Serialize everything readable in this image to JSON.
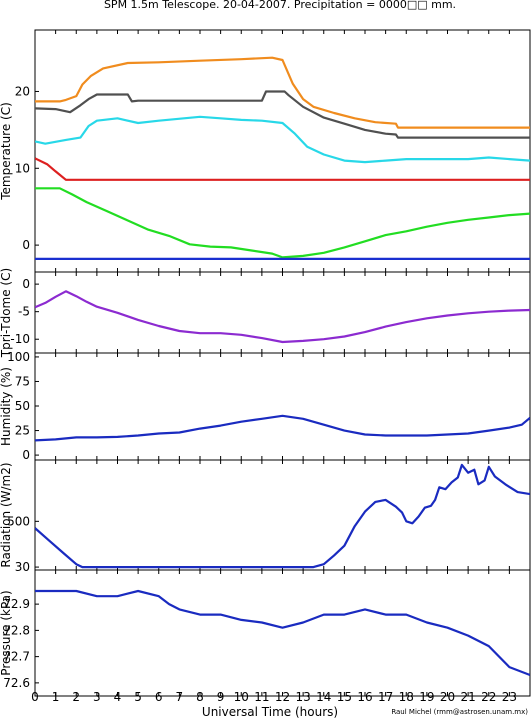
{
  "chart_data": {
    "type": "line",
    "title": "SPM 1.5m Telescope. 20-04-2007. Precipitation = 0000□□ mm.",
    "xlabel": "Universal Time (hours)",
    "credit": "Raul Michel (rmm@astrosen.unam.mx)",
    "xlim": [
      0,
      24
    ],
    "x_ticks": [
      "0",
      "1",
      "2",
      "3",
      "4",
      "5",
      "6",
      "7",
      "8",
      "9",
      "10",
      "11",
      "12",
      "13",
      "14",
      "15",
      "16",
      "17",
      "18",
      "19",
      "20",
      "21",
      "22",
      "23"
    ],
    "panels": [
      {
        "id": "temperature",
        "ylabel": "Temperature (C)",
        "ylim": [
          -3.5,
          28
        ],
        "y_ticks": [
          {
            "v": 0,
            "label": "0"
          },
          {
            "v": 10,
            "label": "10"
          },
          {
            "v": 20,
            "label": "20"
          }
        ],
        "series": [
          {
            "color": "#f08c1e",
            "points": [
              [
                0,
                18.7
              ],
              [
                1.2,
                18.7
              ],
              [
                1.5,
                18.9
              ],
              [
                2,
                19.4
              ],
              [
                2.3,
                20.9
              ],
              [
                2.7,
                22
              ],
              [
                3.3,
                23
              ],
              [
                4.5,
                23.7
              ],
              [
                6,
                23.8
              ],
              [
                8,
                24
              ],
              [
                10,
                24.2
              ],
              [
                11.5,
                24.4
              ],
              [
                12,
                24.1
              ],
              [
                12.5,
                21
              ],
              [
                13,
                19
              ],
              [
                13.5,
                18
              ],
              [
                14.5,
                17.2
              ],
              [
                15.5,
                16.5
              ],
              [
                16.5,
                16
              ],
              [
                17.5,
                15.8
              ],
              [
                17.6,
                15.3
              ],
              [
                24,
                15.3
              ]
            ]
          },
          {
            "color": "#505050",
            "points": [
              [
                0,
                17.8
              ],
              [
                1,
                17.7
              ],
              [
                1.7,
                17.3
              ],
              [
                2.2,
                18.2
              ],
              [
                2.6,
                19
              ],
              [
                3,
                19.6
              ],
              [
                4.5,
                19.6
              ],
              [
                4.7,
                18.7
              ],
              [
                5,
                18.8
              ],
              [
                11,
                18.8
              ],
              [
                11.2,
                20
              ],
              [
                12.1,
                20
              ],
              [
                12.3,
                19.5
              ],
              [
                13,
                18
              ],
              [
                14,
                16.6
              ],
              [
                15,
                15.8
              ],
              [
                16,
                15
              ],
              [
                17,
                14.5
              ],
              [
                17.5,
                14.4
              ],
              [
                17.6,
                14
              ],
              [
                24,
                14
              ]
            ]
          },
          {
            "color": "#28d8e8",
            "points": [
              [
                0,
                13.5
              ],
              [
                0.5,
                13.2
              ],
              [
                1.5,
                13.7
              ],
              [
                2.2,
                14
              ],
              [
                2.6,
                15.5
              ],
              [
                3,
                16.2
              ],
              [
                4,
                16.5
              ],
              [
                5,
                15.9
              ],
              [
                6,
                16.2
              ],
              [
                8,
                16.7
              ],
              [
                9,
                16.5
              ],
              [
                10,
                16.3
              ],
              [
                11,
                16.2
              ],
              [
                12,
                15.9
              ],
              [
                12.6,
                14.5
              ],
              [
                13.2,
                12.8
              ],
              [
                14,
                11.8
              ],
              [
                15,
                11
              ],
              [
                16,
                10.8
              ],
              [
                17,
                11
              ],
              [
                18,
                11.2
              ],
              [
                19,
                11.2
              ],
              [
                20,
                11.2
              ],
              [
                21,
                11.2
              ],
              [
                22,
                11.4
              ],
              [
                23,
                11.2
              ],
              [
                24,
                11
              ]
            ]
          },
          {
            "color": "#dd2020",
            "points": [
              [
                0,
                11.3
              ],
              [
                0.6,
                10.5
              ],
              [
                1,
                9.6
              ],
              [
                1.5,
                8.5
              ],
              [
                24,
                8.5
              ]
            ]
          },
          {
            "color": "#22dd22",
            "points": [
              [
                0,
                7.4
              ],
              [
                1.2,
                7.4
              ],
              [
                1.8,
                6.6
              ],
              [
                2.5,
                5.6
              ],
              [
                3.5,
                4.4
              ],
              [
                4.5,
                3.2
              ],
              [
                5.5,
                2
              ],
              [
                6.5,
                1.2
              ],
              [
                7.5,
                0.1
              ],
              [
                8.5,
                -0.2
              ],
              [
                9.5,
                -0.3
              ],
              [
                10.5,
                -0.7
              ],
              [
                11.5,
                -1.1
              ],
              [
                12,
                -1.6
              ],
              [
                13,
                -1.4
              ],
              [
                14,
                -1
              ],
              [
                15,
                -0.3
              ],
              [
                16,
                0.5
              ],
              [
                17,
                1.3
              ],
              [
                18,
                1.8
              ],
              [
                19,
                2.4
              ],
              [
                20,
                2.9
              ],
              [
                21,
                3.3
              ],
              [
                22,
                3.6
              ],
              [
                23,
                3.9
              ],
              [
                24,
                4.1
              ]
            ]
          },
          {
            "color": "#1a2fd0",
            "points": [
              [
                0,
                -1.8
              ],
              [
                24,
                -1.8
              ]
            ]
          }
        ]
      },
      {
        "id": "tpri-tdome",
        "ylabel": "Tpri-Tdome (C)",
        "ylim": [
          -12.5,
          2.2
        ],
        "y_ticks": [
          {
            "v": 0,
            "label": "0"
          },
          {
            "v": -5,
            "label": "-5"
          },
          {
            "v": -10,
            "label": "-10"
          }
        ],
        "series": [
          {
            "color": "#8c2bd0",
            "points": [
              [
                0,
                -4.2
              ],
              [
                0.5,
                -3.4
              ],
              [
                1,
                -2.3
              ],
              [
                1.5,
                -1.3
              ],
              [
                2,
                -2.2
              ],
              [
                2.5,
                -3.2
              ],
              [
                3,
                -4.1
              ],
              [
                4,
                -5.2
              ],
              [
                5,
                -6.5
              ],
              [
                6,
                -7.6
              ],
              [
                7,
                -8.5
              ],
              [
                8,
                -8.9
              ],
              [
                9,
                -8.9
              ],
              [
                10,
                -9.2
              ],
              [
                11,
                -9.8
              ],
              [
                12,
                -10.5
              ],
              [
                13,
                -10.3
              ],
              [
                14,
                -10
              ],
              [
                15,
                -9.5
              ],
              [
                16,
                -8.7
              ],
              [
                17,
                -7.7
              ],
              [
                18,
                -6.9
              ],
              [
                19,
                -6.2
              ],
              [
                20,
                -5.7
              ],
              [
                21,
                -5.3
              ],
              [
                22,
                -5
              ],
              [
                23,
                -4.8
              ],
              [
                24,
                -4.7
              ]
            ]
          }
        ]
      },
      {
        "id": "humidity",
        "ylabel": "Humidity (%)",
        "ylim": [
          -5,
          104
        ],
        "y_ticks": [
          {
            "v": 0,
            "label": "0"
          },
          {
            "v": 25,
            "label": "25"
          },
          {
            "v": 50,
            "label": "50"
          },
          {
            "v": 75,
            "label": "75"
          },
          {
            "v": 100,
            "label": "100"
          }
        ],
        "series": [
          {
            "color": "#1a2bc0",
            "points": [
              [
                0,
                15
              ],
              [
                1,
                16
              ],
              [
                2,
                18
              ],
              [
                3,
                18
              ],
              [
                4,
                18.5
              ],
              [
                5,
                20
              ],
              [
                6,
                22
              ],
              [
                7,
                23
              ],
              [
                8,
                27
              ],
              [
                9,
                30
              ],
              [
                10,
                34
              ],
              [
                11,
                37
              ],
              [
                12,
                40
              ],
              [
                13,
                37
              ],
              [
                14,
                31
              ],
              [
                15,
                25
              ],
              [
                16,
                21
              ],
              [
                17,
                20
              ],
              [
                18,
                20
              ],
              [
                19,
                20
              ],
              [
                20,
                21
              ],
              [
                21,
                22
              ],
              [
                22,
                25
              ],
              [
                23,
                28
              ],
              [
                23.6,
                31
              ],
              [
                24,
                38
              ]
            ]
          }
        ]
      },
      {
        "id": "radiation",
        "ylabel": "Radiation (W/m2)",
        "ylim": [
          0,
          1130
        ],
        "y_ticks": [
          {
            "v": 30,
            "label": "30"
          },
          {
            "v": 500,
            "label": "500"
          }
        ],
        "series": [
          {
            "color": "#1a2bc0",
            "points": [
              [
                0,
                430
              ],
              [
                0.7,
                300
              ],
              [
                1.4,
                170
              ],
              [
                2,
                60
              ],
              [
                2.3,
                30
              ],
              [
                13.5,
                30
              ],
              [
                14,
                60
              ],
              [
                14.5,
                150
              ],
              [
                15,
                250
              ],
              [
                15.5,
                450
              ],
              [
                16,
                600
              ],
              [
                16.5,
                700
              ],
              [
                17,
                720
              ],
              [
                17.5,
                650
              ],
              [
                17.8,
                590
              ],
              [
                18,
                500
              ],
              [
                18.3,
                480
              ],
              [
                18.6,
                550
              ],
              [
                18.9,
                640
              ],
              [
                19.2,
                660
              ],
              [
                19.4,
                720
              ],
              [
                19.6,
                850
              ],
              [
                19.9,
                830
              ],
              [
                20.2,
                900
              ],
              [
                20.5,
                950
              ],
              [
                20.7,
                1080
              ],
              [
                21,
                1000
              ],
              [
                21.3,
                1030
              ],
              [
                21.5,
                880
              ],
              [
                21.8,
                920
              ],
              [
                22,
                1060
              ],
              [
                22.3,
                960
              ],
              [
                22.8,
                880
              ],
              [
                23.4,
                800
              ],
              [
                24,
                780
              ]
            ]
          }
        ]
      },
      {
        "id": "pressure",
        "ylabel": "Pressure (kPa)",
        "ylim": [
          72.55,
          73.03
        ],
        "y_ticks": [
          {
            "v": 72.6,
            "label": "72.6"
          },
          {
            "v": 72.7,
            "label": "72.7"
          },
          {
            "v": 72.8,
            "label": "72.8"
          },
          {
            "v": 72.9,
            "label": "72.9"
          }
        ],
        "series": [
          {
            "color": "#1a2bc0",
            "points": [
              [
                0,
                72.95
              ],
              [
                1,
                72.95
              ],
              [
                2,
                72.95
              ],
              [
                3,
                72.93
              ],
              [
                4,
                72.93
              ],
              [
                5,
                72.95
              ],
              [
                6,
                72.93
              ],
              [
                6.5,
                72.9
              ],
              [
                7,
                72.88
              ],
              [
                8,
                72.86
              ],
              [
                9,
                72.86
              ],
              [
                10,
                72.84
              ],
              [
                11,
                72.83
              ],
              [
                12,
                72.81
              ],
              [
                13,
                72.83
              ],
              [
                14,
                72.86
              ],
              [
                15,
                72.86
              ],
              [
                16,
                72.88
              ],
              [
                17,
                72.86
              ],
              [
                18,
                72.86
              ],
              [
                19,
                72.83
              ],
              [
                20,
                72.81
              ],
              [
                21,
                72.78
              ],
              [
                22,
                72.74
              ],
              [
                23,
                72.66
              ],
              [
                24,
                72.63
              ]
            ]
          }
        ]
      }
    ]
  }
}
